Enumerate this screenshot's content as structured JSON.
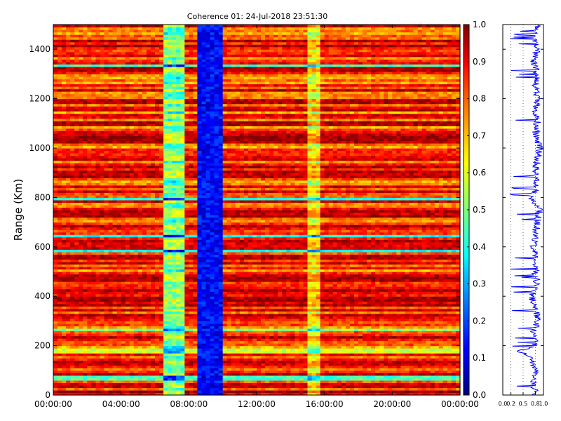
{
  "figure": {
    "colors": {
      "background": "#ffffff",
      "axis": "#000000",
      "profile_line": "#0000ff",
      "profile_grid": "#000000"
    },
    "colormap": "jet"
  },
  "chart_data": [
    {
      "type": "heatmap",
      "title": "Coherence 01: 24-Jul-2018 23:51:30",
      "ylabel": "Range (Km)",
      "xlabel": "",
      "x_ticks": [
        "00:00:00",
        "04:00:00",
        "08:00:00",
        "12:00:00",
        "16:00:00",
        "20:00:00",
        "00:00:00"
      ],
      "x_range_hours": [
        0,
        24
      ],
      "ylim": [
        0,
        1500
      ],
      "y_ticks": [
        0,
        200,
        400,
        600,
        800,
        1000,
        1200,
        1400
      ],
      "value_range": [
        0.0,
        1.0
      ],
      "colorbar_ticks": [
        "0.0",
        "0.1",
        "0.2",
        "0.3",
        "0.4",
        "0.5",
        "0.6",
        "0.7",
        "0.8",
        "0.9",
        "1.0"
      ],
      "background_coherence": 0.85,
      "time_features": [
        {
          "start_hour": 6.6,
          "end_hour": 7.8,
          "coherence": 0.5
        },
        {
          "start_hour": 8.5,
          "end_hour": 10.0,
          "coherence": 0.05
        },
        {
          "start_hour": 15.1,
          "end_hour": 15.7,
          "coherence": 0.65
        }
      ],
      "range_features": [
        {
          "range_km": 70,
          "coherence": 0.45
        },
        {
          "range_km": 180,
          "coherence": 0.6
        },
        {
          "range_km": 265,
          "coherence": 0.5
        },
        {
          "range_km": 585,
          "coherence": 0.4
        },
        {
          "range_km": 645,
          "coherence": 0.4
        },
        {
          "range_km": 795,
          "coherence": 0.45
        },
        {
          "range_km": 1335,
          "coherence": 0.45
        }
      ]
    },
    {
      "type": "line",
      "title": "",
      "xlabel": "",
      "ylabel": "",
      "xlim": [
        0.0,
        1.0
      ],
      "x_ticks": [
        "0.0",
        "0.2",
        "0.5",
        "0.8",
        "1.0"
      ],
      "ylim": [
        0,
        1500
      ],
      "gridlines_x": [
        0.2,
        0.5,
        0.8
      ],
      "series": [
        {
          "range_km": [
            0,
            50,
            100,
            150,
            180,
            200,
            250,
            300,
            350,
            400,
            450,
            500,
            550,
            600,
            650,
            700,
            750,
            800,
            850,
            900,
            950,
            1000,
            1050,
            1100,
            1150,
            1200,
            1250,
            1300,
            1350,
            1400,
            1450,
            1500
          ],
          "coherence": [
            0.8,
            0.75,
            0.8,
            0.7,
            0.4,
            0.8,
            0.75,
            0.85,
            0.8,
            0.7,
            0.85,
            0.8,
            0.85,
            0.75,
            0.8,
            0.85,
            0.9,
            0.7,
            0.85,
            0.8,
            0.85,
            0.9,
            0.8,
            0.85,
            0.8,
            0.85,
            0.8,
            0.85,
            0.75,
            0.85,
            0.8,
            0.85
          ]
        }
      ]
    }
  ]
}
